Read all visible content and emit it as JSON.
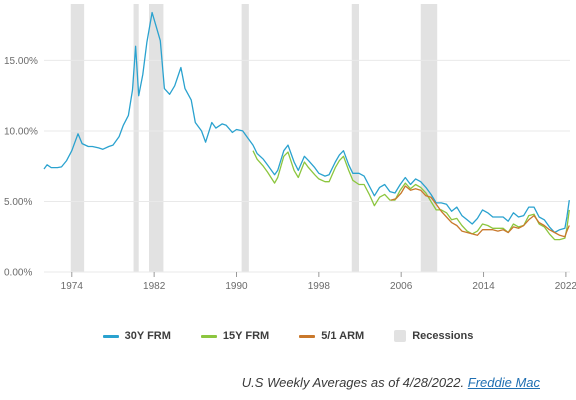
{
  "chart_data": {
    "type": "line",
    "x_range": [
      1971.3,
      2022.4
    ],
    "ylim": [
      0,
      19
    ],
    "y_ticks": [
      {
        "value": 0,
        "label": "0.00%"
      },
      {
        "value": 5,
        "label": "5.00%"
      },
      {
        "value": 10,
        "label": "10.00%"
      },
      {
        "value": 15,
        "label": "15.00%"
      }
    ],
    "x_ticks": [
      {
        "value": 1974,
        "label": "1974"
      },
      {
        "value": 1982,
        "label": "1982"
      },
      {
        "value": 1990,
        "label": "1990"
      },
      {
        "value": 1998,
        "label": "1998"
      },
      {
        "value": 2006,
        "label": "2006"
      },
      {
        "value": 2014,
        "label": "2014"
      },
      {
        "value": 2022,
        "label": "2022"
      }
    ],
    "grid": {
      "horizontal": true,
      "vertical": false
    },
    "legend_placement": "bottom-center",
    "recessions": [
      [
        1973.9,
        1975.2
      ],
      [
        1980.0,
        1980.5
      ],
      [
        1981.5,
        1982.9
      ],
      [
        1990.5,
        1991.2
      ],
      [
        2001.2,
        2001.9
      ],
      [
        2007.9,
        2009.5
      ]
    ],
    "recession_color": "#e2e2e2",
    "series": [
      {
        "name": "30Y FRM",
        "color": "#2aa2cf",
        "points": [
          [
            1971.3,
            7.3
          ],
          [
            1971.6,
            7.6
          ],
          [
            1972.0,
            7.4
          ],
          [
            1972.6,
            7.4
          ],
          [
            1973.0,
            7.45
          ],
          [
            1973.5,
            7.9
          ],
          [
            1974.0,
            8.6
          ],
          [
            1974.6,
            9.8
          ],
          [
            1975.0,
            9.1
          ],
          [
            1975.6,
            8.9
          ],
          [
            1976.0,
            8.9
          ],
          [
            1976.6,
            8.8
          ],
          [
            1977.0,
            8.7
          ],
          [
            1977.6,
            8.9
          ],
          [
            1978.0,
            9.0
          ],
          [
            1978.6,
            9.6
          ],
          [
            1979.0,
            10.4
          ],
          [
            1979.5,
            11.1
          ],
          [
            1979.9,
            12.9
          ],
          [
            1980.2,
            16.0
          ],
          [
            1980.5,
            12.5
          ],
          [
            1980.9,
            14.0
          ],
          [
            1981.3,
            16.3
          ],
          [
            1981.8,
            18.4
          ],
          [
            1982.2,
            17.4
          ],
          [
            1982.6,
            16.4
          ],
          [
            1983.0,
            13.0
          ],
          [
            1983.5,
            12.6
          ],
          [
            1984.0,
            13.2
          ],
          [
            1984.6,
            14.5
          ],
          [
            1985.0,
            13.0
          ],
          [
            1985.6,
            12.2
          ],
          [
            1986.0,
            10.6
          ],
          [
            1986.6,
            10.0
          ],
          [
            1987.0,
            9.2
          ],
          [
            1987.6,
            10.6
          ],
          [
            1988.0,
            10.2
          ],
          [
            1988.6,
            10.5
          ],
          [
            1989.0,
            10.4
          ],
          [
            1989.6,
            9.9
          ],
          [
            1990.0,
            10.1
          ],
          [
            1990.6,
            10.0
          ],
          [
            1991.0,
            9.6
          ],
          [
            1991.6,
            9.0
          ],
          [
            1992.0,
            8.4
          ],
          [
            1992.6,
            8.0
          ],
          [
            1993.0,
            7.6
          ],
          [
            1993.7,
            6.9
          ],
          [
            1994.0,
            7.2
          ],
          [
            1994.6,
            8.6
          ],
          [
            1995.0,
            9.0
          ],
          [
            1995.6,
            7.8
          ],
          [
            1996.0,
            7.2
          ],
          [
            1996.6,
            8.2
          ],
          [
            1997.0,
            7.9
          ],
          [
            1997.6,
            7.4
          ],
          [
            1998.0,
            7.0
          ],
          [
            1998.6,
            6.8
          ],
          [
            1999.0,
            6.9
          ],
          [
            1999.6,
            7.8
          ],
          [
            2000.0,
            8.3
          ],
          [
            2000.4,
            8.6
          ],
          [
            2000.9,
            7.6
          ],
          [
            2001.3,
            7.0
          ],
          [
            2001.9,
            7.0
          ],
          [
            2002.4,
            6.8
          ],
          [
            2002.9,
            6.1
          ],
          [
            2003.4,
            5.4
          ],
          [
            2003.9,
            6.0
          ],
          [
            2004.4,
            6.2
          ],
          [
            2004.9,
            5.7
          ],
          [
            2005.4,
            5.6
          ],
          [
            2005.9,
            6.2
          ],
          [
            2006.4,
            6.7
          ],
          [
            2006.9,
            6.2
          ],
          [
            2007.4,
            6.6
          ],
          [
            2007.9,
            6.4
          ],
          [
            2008.4,
            6.0
          ],
          [
            2008.9,
            5.5
          ],
          [
            2009.4,
            4.9
          ],
          [
            2009.9,
            4.9
          ],
          [
            2010.4,
            4.8
          ],
          [
            2010.9,
            4.3
          ],
          [
            2011.4,
            4.6
          ],
          [
            2011.9,
            4.0
          ],
          [
            2012.4,
            3.7
          ],
          [
            2012.9,
            3.4
          ],
          [
            2013.4,
            3.8
          ],
          [
            2013.9,
            4.4
          ],
          [
            2014.4,
            4.2
          ],
          [
            2014.9,
            3.9
          ],
          [
            2015.4,
            3.9
          ],
          [
            2015.9,
            3.9
          ],
          [
            2016.4,
            3.6
          ],
          [
            2016.9,
            4.2
          ],
          [
            2017.4,
            3.9
          ],
          [
            2017.9,
            4.0
          ],
          [
            2018.4,
            4.6
          ],
          [
            2018.9,
            4.6
          ],
          [
            2019.4,
            3.9
          ],
          [
            2019.9,
            3.7
          ],
          [
            2020.4,
            3.2
          ],
          [
            2020.9,
            2.8
          ],
          [
            2021.4,
            3.0
          ],
          [
            2021.9,
            3.1
          ],
          [
            2022.1,
            3.9
          ],
          [
            2022.33,
            5.1
          ]
        ]
      },
      {
        "name": "15Y FRM",
        "color": "#8cc63f",
        "points": [
          [
            1991.6,
            8.6
          ],
          [
            1992.0,
            8.0
          ],
          [
            1992.6,
            7.5
          ],
          [
            1993.0,
            7.1
          ],
          [
            1993.7,
            6.3
          ],
          [
            1994.0,
            6.7
          ],
          [
            1994.6,
            8.2
          ],
          [
            1995.0,
            8.5
          ],
          [
            1995.6,
            7.2
          ],
          [
            1996.0,
            6.7
          ],
          [
            1996.6,
            7.8
          ],
          [
            1997.0,
            7.4
          ],
          [
            1997.6,
            6.9
          ],
          [
            1998.0,
            6.6
          ],
          [
            1998.6,
            6.4
          ],
          [
            1999.0,
            6.4
          ],
          [
            1999.6,
            7.4
          ],
          [
            2000.0,
            7.9
          ],
          [
            2000.4,
            8.2
          ],
          [
            2000.9,
            7.2
          ],
          [
            2001.3,
            6.5
          ],
          [
            2001.9,
            6.2
          ],
          [
            2002.4,
            6.2
          ],
          [
            2002.9,
            5.5
          ],
          [
            2003.4,
            4.7
          ],
          [
            2003.9,
            5.3
          ],
          [
            2004.4,
            5.5
          ],
          [
            2004.9,
            5.1
          ],
          [
            2005.4,
            5.1
          ],
          [
            2005.9,
            5.8
          ],
          [
            2006.4,
            6.3
          ],
          [
            2006.9,
            5.9
          ],
          [
            2007.4,
            6.2
          ],
          [
            2007.9,
            6.0
          ],
          [
            2008.4,
            5.6
          ],
          [
            2008.9,
            5.0
          ],
          [
            2009.4,
            4.4
          ],
          [
            2009.9,
            4.4
          ],
          [
            2010.4,
            4.2
          ],
          [
            2010.9,
            3.7
          ],
          [
            2011.4,
            3.8
          ],
          [
            2011.9,
            3.3
          ],
          [
            2012.4,
            2.9
          ],
          [
            2012.9,
            2.7
          ],
          [
            2013.4,
            2.9
          ],
          [
            2013.9,
            3.4
          ],
          [
            2014.4,
            3.3
          ],
          [
            2014.9,
            3.1
          ],
          [
            2015.4,
            3.1
          ],
          [
            2015.9,
            3.1
          ],
          [
            2016.4,
            2.8
          ],
          [
            2016.9,
            3.4
          ],
          [
            2017.4,
            3.2
          ],
          [
            2017.9,
            3.3
          ],
          [
            2018.4,
            4.0
          ],
          [
            2018.9,
            4.1
          ],
          [
            2019.4,
            3.4
          ],
          [
            2019.9,
            3.2
          ],
          [
            2020.4,
            2.7
          ],
          [
            2020.9,
            2.3
          ],
          [
            2021.4,
            2.3
          ],
          [
            2021.9,
            2.4
          ],
          [
            2022.1,
            3.1
          ],
          [
            2022.33,
            4.4
          ]
        ]
      },
      {
        "name": "5/1 ARM",
        "color": "#c9782b",
        "points": [
          [
            2005.0,
            5.1
          ],
          [
            2005.5,
            5.2
          ],
          [
            2006.0,
            5.6
          ],
          [
            2006.4,
            6.1
          ],
          [
            2006.9,
            5.8
          ],
          [
            2007.4,
            5.9
          ],
          [
            2007.9,
            5.8
          ],
          [
            2008.4,
            5.4
          ],
          [
            2008.9,
            5.3
          ],
          [
            2009.4,
            4.8
          ],
          [
            2009.9,
            4.3
          ],
          [
            2010.4,
            3.9
          ],
          [
            2010.9,
            3.5
          ],
          [
            2011.4,
            3.3
          ],
          [
            2011.9,
            2.9
          ],
          [
            2012.4,
            2.8
          ],
          [
            2012.9,
            2.7
          ],
          [
            2013.4,
            2.6
          ],
          [
            2013.9,
            3.0
          ],
          [
            2014.4,
            3.0
          ],
          [
            2014.9,
            3.0
          ],
          [
            2015.4,
            2.9
          ],
          [
            2015.9,
            3.0
          ],
          [
            2016.4,
            2.8
          ],
          [
            2016.9,
            3.2
          ],
          [
            2017.4,
            3.1
          ],
          [
            2017.9,
            3.3
          ],
          [
            2018.4,
            3.7
          ],
          [
            2018.9,
            4.0
          ],
          [
            2019.4,
            3.5
          ],
          [
            2019.9,
            3.3
          ],
          [
            2020.4,
            3.0
          ],
          [
            2020.9,
            2.8
          ],
          [
            2021.4,
            2.6
          ],
          [
            2021.9,
            2.5
          ],
          [
            2022.1,
            2.9
          ],
          [
            2022.33,
            3.3
          ]
        ]
      }
    ],
    "legend_recessions_label": "Recessions"
  },
  "legend": [
    {
      "label": "30Y FRM",
      "color": "#2aa2cf",
      "kind": "line"
    },
    {
      "label": "15Y FRM",
      "color": "#8cc63f",
      "kind": "line"
    },
    {
      "label": "5/1 ARM",
      "color": "#c9782b",
      "kind": "line"
    },
    {
      "label": "Recessions",
      "color": "#e2e2e2",
      "kind": "box"
    }
  ],
  "source": {
    "text": "U.S Weekly Averages as of 4/28/2022.",
    "link": "Freddie Mac"
  }
}
